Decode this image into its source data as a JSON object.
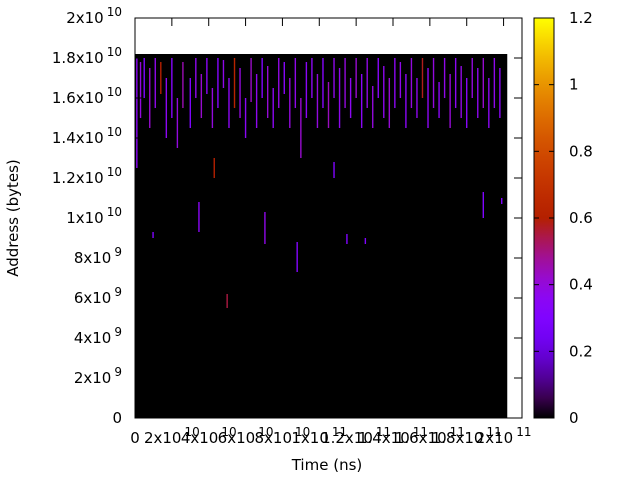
{
  "chart_data": {
    "type": "heatmap",
    "xlabel": "Time (ns)",
    "ylabel": "Address (bytes)",
    "xlim": [
      0,
      210000000000.0
    ],
    "ylim": [
      0,
      20000000000.0
    ],
    "xticks": [
      0,
      {
        "value": 20000000000.0,
        "label": "2x10",
        "power": "10"
      },
      {
        "value": 40000000000.0,
        "label": "4x10",
        "power": "10"
      },
      {
        "value": 60000000000.0,
        "label": "6x10",
        "power": "10"
      },
      {
        "value": 80000000000.0,
        "label": "8x10",
        "power": "10"
      },
      {
        "value": 100000000000.0,
        "label": "1x10",
        "power": "11"
      },
      {
        "value": 120000000000.0,
        "label": "1.2x10",
        "power": "11"
      },
      {
        "value": 140000000000.0,
        "label": "1.4x10",
        "power": "11"
      },
      {
        "value": 160000000000.0,
        "label": "1.6x10",
        "power": "11"
      },
      {
        "value": 180000000000.0,
        "label": "1.8x10",
        "power": "11"
      },
      {
        "value": 200000000000.0,
        "label": "2x10",
        "power": "11"
      }
    ],
    "yticks": [
      0,
      {
        "value": 2000000000.0,
        "label": "2x10",
        "power": "9"
      },
      {
        "value": 4000000000.0,
        "label": "4x10",
        "power": "9"
      },
      {
        "value": 6000000000.0,
        "label": "6x10",
        "power": "9"
      },
      {
        "value": 8000000000.0,
        "label": "8x10",
        "power": "9"
      },
      {
        "value": 10000000000.0,
        "label": "1x10",
        "power": "10"
      },
      {
        "value": 12000000000.0,
        "label": "1.2x10",
        "power": "10"
      },
      {
        "value": 14000000000.0,
        "label": "1.4x10",
        "power": "10"
      },
      {
        "value": 16000000000.0,
        "label": "1.6x10",
        "power": "10"
      },
      {
        "value": 18000000000.0,
        "label": "1.8x10",
        "power": "10"
      },
      {
        "value": 20000000000.0,
        "label": "2x10",
        "power": "10"
      }
    ],
    "palette": "gnuplot",
    "cblim": [
      0,
      1.2
    ],
    "cbticks": [
      0,
      0.2,
      0.4,
      0.6,
      0.8,
      1,
      1.2
    ],
    "field": {
      "x": [
        0,
        202000000000.0
      ],
      "y": [
        0,
        18200000000.0
      ],
      "value": 0
    },
    "x": [
      1000000000.0,
      3000000000.0,
      5000000000.0,
      8000000000.0,
      11000000000.0,
      14000000000.0,
      17000000000.0,
      20000000000.0,
      23000000000.0,
      26000000000.0,
      30000000000.0,
      33000000000.0,
      36000000000.0,
      39000000000.0,
      42000000000.0,
      45000000000.0,
      48000000000.0,
      51000000000.0,
      54000000000.0,
      57000000000.0,
      60000000000.0,
      63000000000.0,
      66000000000.0,
      69000000000.0,
      72000000000.0,
      75000000000.0,
      78000000000.0,
      81000000000.0,
      84000000000.0,
      87000000000.0,
      90000000000.0,
      93000000000.0,
      96000000000.0,
      99000000000.0,
      102000000000.0,
      105000000000.0,
      108000000000.0,
      111000000000.0,
      114000000000.0,
      117000000000.0,
      120000000000.0,
      123000000000.0,
      126000000000.0,
      129000000000.0,
      132000000000.0,
      135000000000.0,
      138000000000.0,
      141000000000.0,
      144000000000.0,
      147000000000.0,
      150000000000.0,
      153000000000.0,
      156000000000.0,
      159000000000.0,
      162000000000.0,
      165000000000.0,
      168000000000.0,
      171000000000.0,
      174000000000.0,
      177000000000.0,
      180000000000.0,
      183000000000.0,
      186000000000.0,
      189000000000.0,
      192000000000.0,
      195000000000.0,
      198000000000.0,
      9800000000.0,
      34700000000.0,
      70500000000.0,
      88000000000.0,
      50000000000.0,
      115000000000.0,
      125000000000.0,
      189000000000.0,
      199000000000.0,
      43000000000.0,
      108000000000.0
    ],
    "y0": [
      12500000000.0,
      15000000000.0,
      16000000000.0,
      14500000000.0,
      15500000000.0,
      16200000000.0,
      14000000000.0,
      15000000000.0,
      13500000000.0,
      15500000000.0,
      14500000000.0,
      16000000000.0,
      15000000000.0,
      16200000000.0,
      14500000000.0,
      15500000000.0,
      16500000000.0,
      14500000000.0,
      15500000000.0,
      15000000000.0,
      14000000000.0,
      15800000000.0,
      14500000000.0,
      16000000000.0,
      15000000000.0,
      14500000000.0,
      15500000000.0,
      16200000000.0,
      14500000000.0,
      15500000000.0,
      13000000000.0,
      15000000000.0,
      16000000000.0,
      14500000000.0,
      15500000000.0,
      14500000000.0,
      16000000000.0,
      14500000000.0,
      15500000000.0,
      15000000000.0,
      16000000000.0,
      14500000000.0,
      15500000000.0,
      14500000000.0,
      16000000000.0,
      15000000000.0,
      14500000000.0,
      15500000000.0,
      16000000000.0,
      14500000000.0,
      15500000000.0,
      15000000000.0,
      16000000000.0,
      14500000000.0,
      15500000000.0,
      15000000000.0,
      16000000000.0,
      14500000000.0,
      15500000000.0,
      15000000000.0,
      14500000000.0,
      16000000000.0,
      15000000000.0,
      15500000000.0,
      14500000000.0,
      15500000000.0,
      15000000000.0,
      9000000000.0,
      9300000000.0,
      8700000000.0,
      7300000000.0,
      5500000000.0,
      8700000000.0,
      8700000000.0,
      10000000000.0,
      10700000000.0,
      12000000000.0,
      12000000000.0
    ],
    "y1": [
      18000000000.0,
      17800000000.0,
      18000000000.0,
      17500000000.0,
      18000000000.0,
      17800000000.0,
      17000000000.0,
      18000000000.0,
      16000000000.0,
      17800000000.0,
      17000000000.0,
      18000000000.0,
      17200000000.0,
      18000000000.0,
      16500000000.0,
      18000000000.0,
      17900000000.0,
      17000000000.0,
      18000000000.0,
      17500000000.0,
      16000000000.0,
      18000000000.0,
      17200000000.0,
      18000000000.0,
      17600000000.0,
      16500000000.0,
      18000000000.0,
      17800000000.0,
      17000000000.0,
      18000000000.0,
      16000000000.0,
      17800000000.0,
      18000000000.0,
      17200000000.0,
      18000000000.0,
      16800000000.0,
      18000000000.0,
      17500000000.0,
      18000000000.0,
      17000000000.0,
      18000000000.0,
      17200000000.0,
      18000000000.0,
      16600000000.0,
      18000000000.0,
      17600000000.0,
      17000000000.0,
      18000000000.0,
      17800000000.0,
      17200000000.0,
      18000000000.0,
      17000000000.0,
      18000000000.0,
      17500000000.0,
      18000000000.0,
      16800000000.0,
      18000000000.0,
      17200000000.0,
      18000000000.0,
      17600000000.0,
      17000000000.0,
      18000000000.0,
      17500000000.0,
      18000000000.0,
      17000000000.0,
      18000000000.0,
      17500000000.0,
      9300000000.0,
      10800000000.0,
      10300000000.0,
      8800000000.0,
      6200000000.0,
      9200000000.0,
      9000000000.0,
      11300000000.0,
      11000000000.0,
      13000000000.0,
      12800000000.0
    ],
    "values": [
      0.35,
      0.4,
      0.3,
      0.42,
      0.38,
      0.6,
      0.36,
      0.33,
      0.4,
      0.45,
      0.3,
      0.37,
      0.42,
      0.35,
      0.4,
      0.32,
      0.38,
      0.36,
      0.62,
      0.4,
      0.35,
      0.43,
      0.37,
      0.3,
      0.41,
      0.36,
      0.39,
      0.34,
      0.4,
      0.38,
      0.42,
      0.35,
      0.36,
      0.4,
      0.33,
      0.44,
      0.38,
      0.37,
      0.4,
      0.36,
      0.42,
      0.35,
      0.39,
      0.4,
      0.34,
      0.37,
      0.41,
      0.36,
      0.38,
      0.35,
      0.4,
      0.37,
      0.58,
      0.36,
      0.4,
      0.35,
      0.38,
      0.41,
      0.36,
      0.39,
      0.34,
      0.4,
      0.37,
      0.42,
      0.36,
      0.38,
      0.35,
      0.3,
      0.35,
      0.38,
      0.32,
      0.55,
      0.3,
      0.3,
      0.3,
      0.3,
      0.6,
      0.3
    ]
  }
}
